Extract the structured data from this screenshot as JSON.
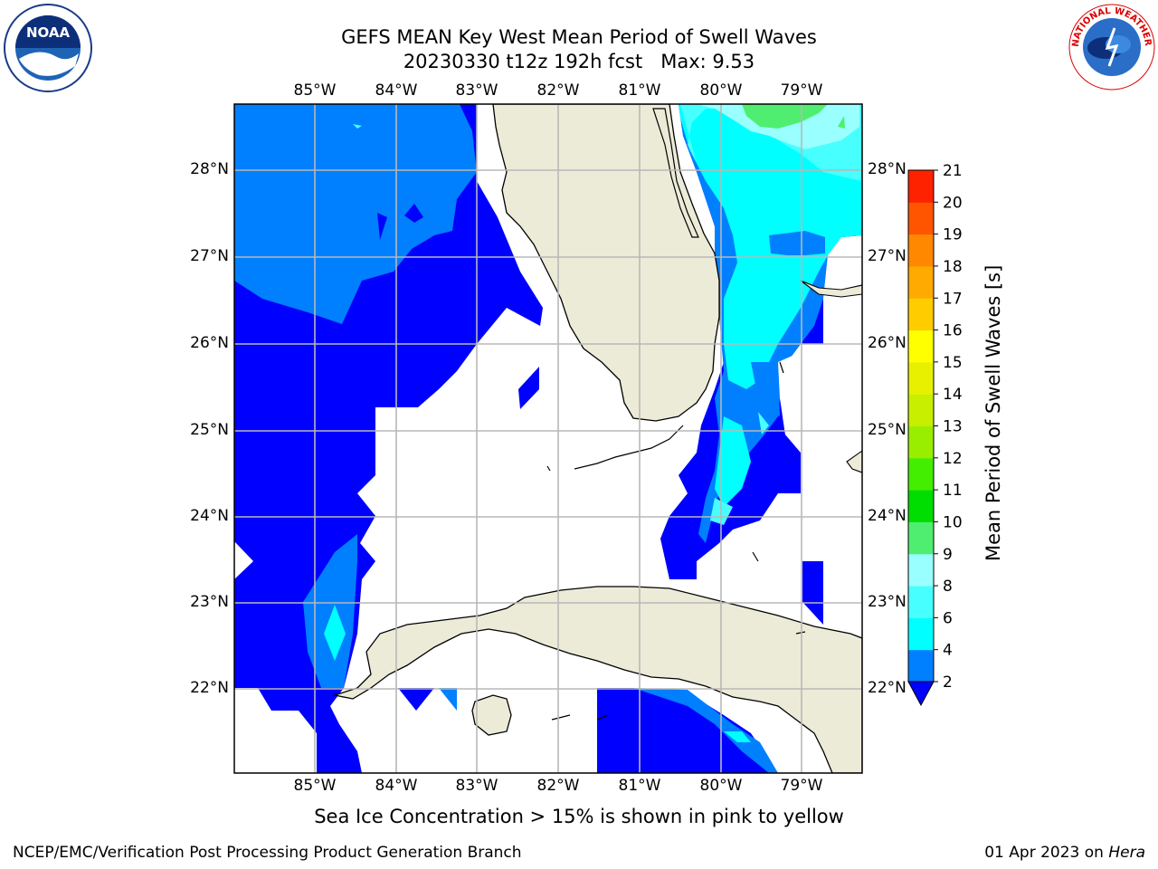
{
  "title_line1": "GEFS MEAN Key West Mean Period of Swell Waves",
  "title_line2": "20230330 t12z 192h fcst   Max: 9.53",
  "lon_ticks": [
    "85°W",
    "84°W",
    "83°W",
    "82°W",
    "81°W",
    "80°W",
    "79°W"
  ],
  "lat_ticks": [
    "28°N",
    "27°N",
    "26°N",
    "25°N",
    "24°N",
    "23°N",
    "22°N"
  ],
  "colorbar": {
    "label": "Mean Period of Swell Waves [s]",
    "ticks": [
      "2",
      "4",
      "6",
      "8",
      "9",
      "10",
      "11",
      "12",
      "13",
      "14",
      "15",
      "16",
      "17",
      "18",
      "19",
      "20",
      "21"
    ],
    "colors": [
      "#0000ff",
      "#0080ff",
      "#00ffff",
      "#48ffff",
      "#99ffff",
      "#50ee70",
      "#00dd00",
      "#44ee00",
      "#99ee00",
      "#c8ee00",
      "#e8f000",
      "#ffff00",
      "#ffcc00",
      "#ffaa00",
      "#ff8800",
      "#ff5500",
      "#ff2200",
      "#ff0000"
    ]
  },
  "note": "Sea Ice Concentration > 15% is shown in pink to yellow",
  "footer_left": "NCEP/EMC/Verification Post Processing Product Generation Branch",
  "footer_right_prefix": "01 Apr 2023 on ",
  "footer_right_machine": "Hera",
  "logo_left": {
    "text": "NOAA"
  },
  "logo_right": {
    "text": "NATIONAL WEATHER SERVICE"
  }
}
